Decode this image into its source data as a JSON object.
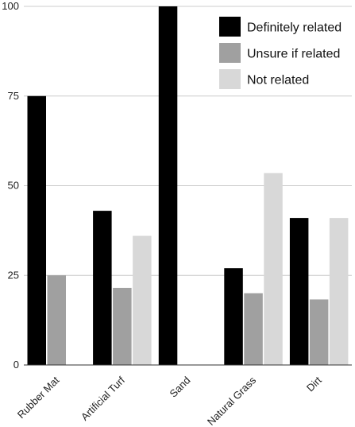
{
  "chart_data": {
    "type": "bar",
    "categories": [
      "Rubber Mat",
      "Artificial Turf",
      "Sand",
      "Natural Grass",
      "Dirt"
    ],
    "series": [
      {
        "name": "Definitely related",
        "color": "#000000",
        "values": [
          75,
          43,
          100,
          27,
          41
        ]
      },
      {
        "name": "Unsure if related",
        "color": "#a0a0a0",
        "values": [
          25,
          21.5,
          0,
          20,
          18.3
        ]
      },
      {
        "name": "Not related",
        "color": "#d8d8d8",
        "values": [
          0,
          36,
          0,
          53.5,
          41
        ]
      }
    ],
    "ylim": [
      0,
      100
    ],
    "yticks": [
      "0",
      "25",
      "50",
      "75",
      "100"
    ],
    "grid": true,
    "legend_position": "top-right",
    "title": "",
    "xlabel": "",
    "ylabel": ""
  }
}
